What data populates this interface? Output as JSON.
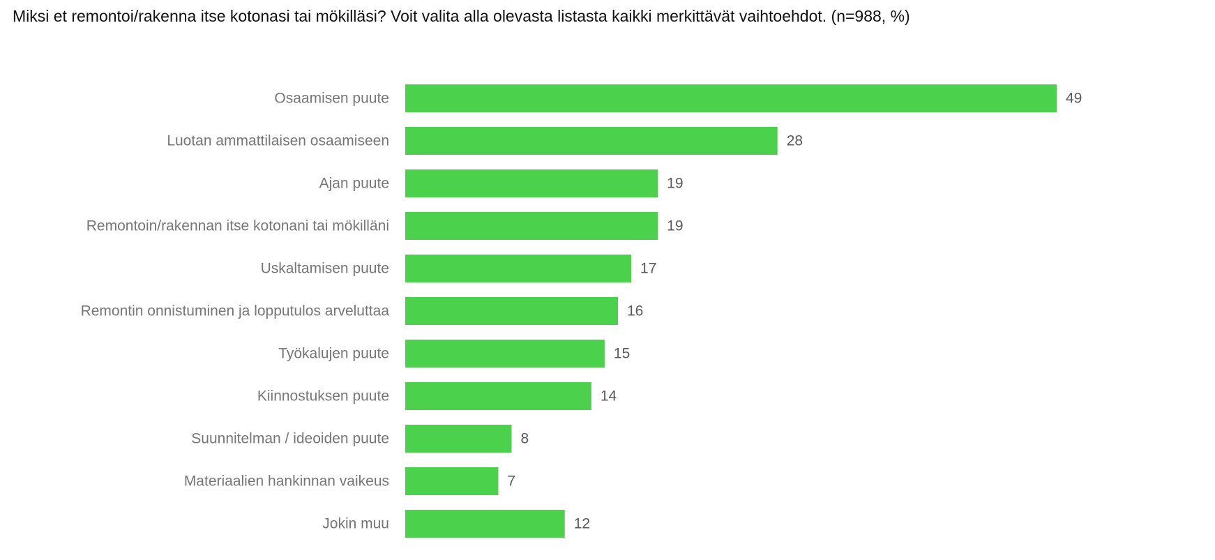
{
  "chart_data": {
    "type": "bar",
    "orientation": "horizontal",
    "title": "Miksi et remontoi/rakenna itse kotonasi tai mökilläsi? Voit valita alla olevasta listasta kaikki merkittävät vaihtoehdot. (n=988, %)",
    "categories": [
      "Osaamisen puute",
      "Luotan ammattilaisen osaamiseen",
      "Ajan puute",
      "Remontoin/rakennan itse kotonani tai mökilläni",
      "Uskaltamisen puute",
      "Remontin onnistuminen ja lopputulos arveluttaa",
      "Työkalujen puute",
      "Kiinnostuksen puute",
      "Suunnitelman / ideoiden puute",
      "Materiaalien hankinnan vaikeus",
      "Jokin muu"
    ],
    "values": [
      49,
      28,
      19,
      19,
      17,
      16,
      15,
      14,
      8,
      7,
      12
    ],
    "xlabel": "",
    "ylabel": "",
    "xlim": [
      0,
      49
    ],
    "grid": false,
    "legend": "none",
    "data_labels": true,
    "bar_color": "#4cd14c"
  }
}
